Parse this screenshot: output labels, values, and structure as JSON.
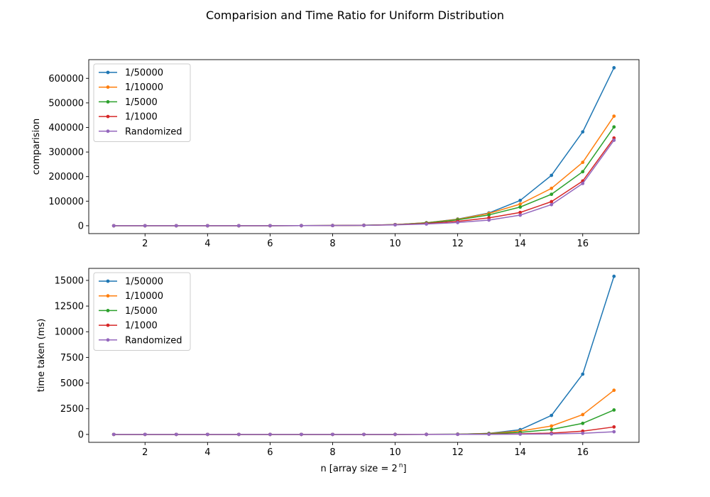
{
  "figure_title": "Comparision and Time Ratio for Uniform Distribution",
  "chart_data": [
    {
      "type": "line",
      "title": "",
      "xlabel": "",
      "ylabel": "comparision",
      "xlim": [
        0.2,
        17.8
      ],
      "ylim": [
        -32000,
        676000
      ],
      "xticks": [
        2,
        4,
        6,
        8,
        10,
        12,
        14,
        16
      ],
      "yticks": [
        0,
        100000,
        200000,
        300000,
        400000,
        500000,
        600000
      ],
      "legend_position": "upper left",
      "grid": false,
      "x": [
        1,
        2,
        3,
        4,
        5,
        6,
        7,
        8,
        9,
        10,
        11,
        12,
        13,
        14,
        15,
        16,
        17
      ],
      "series": [
        {
          "name": "1/50000",
          "color": "#1f77b4",
          "values": [
            1,
            3,
            10,
            25,
            60,
            150,
            350,
            800,
            1800,
            4500,
            12000,
            27000,
            52000,
            103000,
            205000,
            382000,
            643000
          ]
        },
        {
          "name": "1/10000",
          "color": "#ff7f0e",
          "values": [
            1,
            3,
            10,
            25,
            60,
            150,
            350,
            800,
            1800,
            4500,
            12000,
            26000,
            50000,
            88000,
            152000,
            258000,
            446000
          ]
        },
        {
          "name": "1/5000",
          "color": "#2ca02c",
          "values": [
            1,
            3,
            10,
            25,
            60,
            150,
            350,
            800,
            1800,
            4500,
            11500,
            24000,
            44000,
            76000,
            128000,
            220000,
            402000
          ]
        },
        {
          "name": "1/1000",
          "color": "#d62728",
          "values": [
            1,
            3,
            10,
            25,
            60,
            150,
            350,
            800,
            1700,
            4000,
            9000,
            18000,
            32000,
            54000,
            98000,
            182000,
            357000
          ]
        },
        {
          "name": "Randomized",
          "color": "#9467bd",
          "values": [
            1,
            3,
            10,
            25,
            60,
            150,
            350,
            700,
            1500,
            3500,
            7000,
            13000,
            23000,
            43000,
            86000,
            172000,
            348000
          ]
        }
      ]
    },
    {
      "type": "line",
      "title": "",
      "xlabel": "n [array size = 2",
      "xlabel_superscript": "n",
      "xlabel_suffix": "]",
      "ylabel": "time taken (ms)",
      "xlim": [
        0.2,
        17.8
      ],
      "ylim": [
        -770,
        16170
      ],
      "xticks": [
        2,
        4,
        6,
        8,
        10,
        12,
        14,
        16
      ],
      "yticks": [
        0,
        2500,
        5000,
        7500,
        10000,
        12500,
        15000
      ],
      "legend_position": "upper left",
      "grid": false,
      "x": [
        1,
        2,
        3,
        4,
        5,
        6,
        7,
        8,
        9,
        10,
        11,
        12,
        13,
        14,
        15,
        16,
        17
      ],
      "series": [
        {
          "name": "1/50000",
          "color": "#1f77b4",
          "values": [
            0,
            0,
            0,
            0,
            0,
            0,
            0,
            0,
            1,
            2,
            5,
            20,
            100,
            460,
            1850,
            5870,
            15400
          ]
        },
        {
          "name": "1/10000",
          "color": "#ff7f0e",
          "values": [
            0,
            0,
            0,
            0,
            0,
            0,
            0,
            0,
            1,
            2,
            5,
            20,
            90,
            330,
            820,
            1930,
            4300
          ]
        },
        {
          "name": "1/5000",
          "color": "#2ca02c",
          "values": [
            0,
            0,
            0,
            0,
            0,
            0,
            0,
            0,
            1,
            2,
            5,
            20,
            80,
            200,
            480,
            1080,
            2380
          ]
        },
        {
          "name": "1/1000",
          "color": "#d62728",
          "values": [
            0,
            0,
            0,
            0,
            0,
            0,
            0,
            0,
            1,
            2,
            4,
            10,
            30,
            60,
            130,
            320,
            730
          ]
        },
        {
          "name": "Randomized",
          "color": "#9467bd",
          "values": [
            0,
            0,
            0,
            0,
            0,
            0,
            0,
            0,
            1,
            1,
            3,
            6,
            12,
            25,
            50,
            110,
            260
          ]
        }
      ]
    }
  ]
}
